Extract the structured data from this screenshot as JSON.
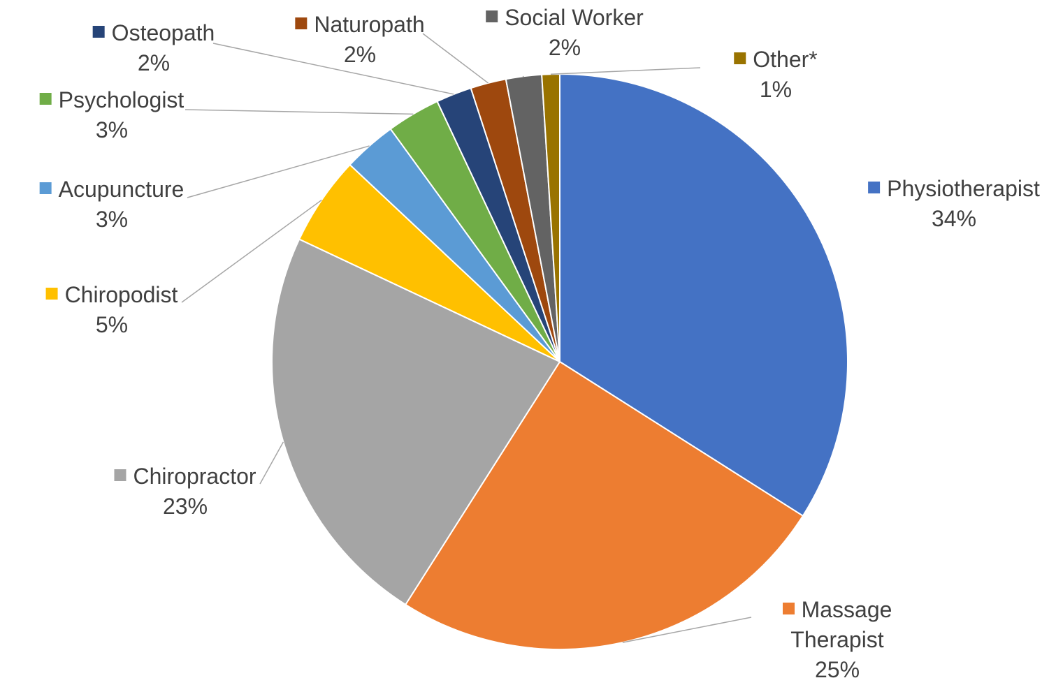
{
  "chart_data": {
    "type": "pie",
    "categories": [
      "Physiotherapist",
      "Massage Therapist",
      "Chiropractor",
      "Chiropodist",
      "Acupuncture",
      "Psychologist",
      "Osteopath",
      "Naturopath",
      "Social Worker",
      "Other*"
    ],
    "values": [
      34,
      25,
      23,
      5,
      3,
      3,
      2,
      2,
      2,
      1
    ],
    "value_labels": [
      "34%",
      "25%",
      "23%",
      "5%",
      "3%",
      "3%",
      "2%",
      "2%",
      "2%",
      "1%"
    ],
    "colors": [
      "#4472c4",
      "#ed7d31",
      "#a5a5a5",
      "#ffc000",
      "#5b9bd5",
      "#70ad47",
      "#264478",
      "#9e480e",
      "#636363",
      "#997300"
    ]
  }
}
